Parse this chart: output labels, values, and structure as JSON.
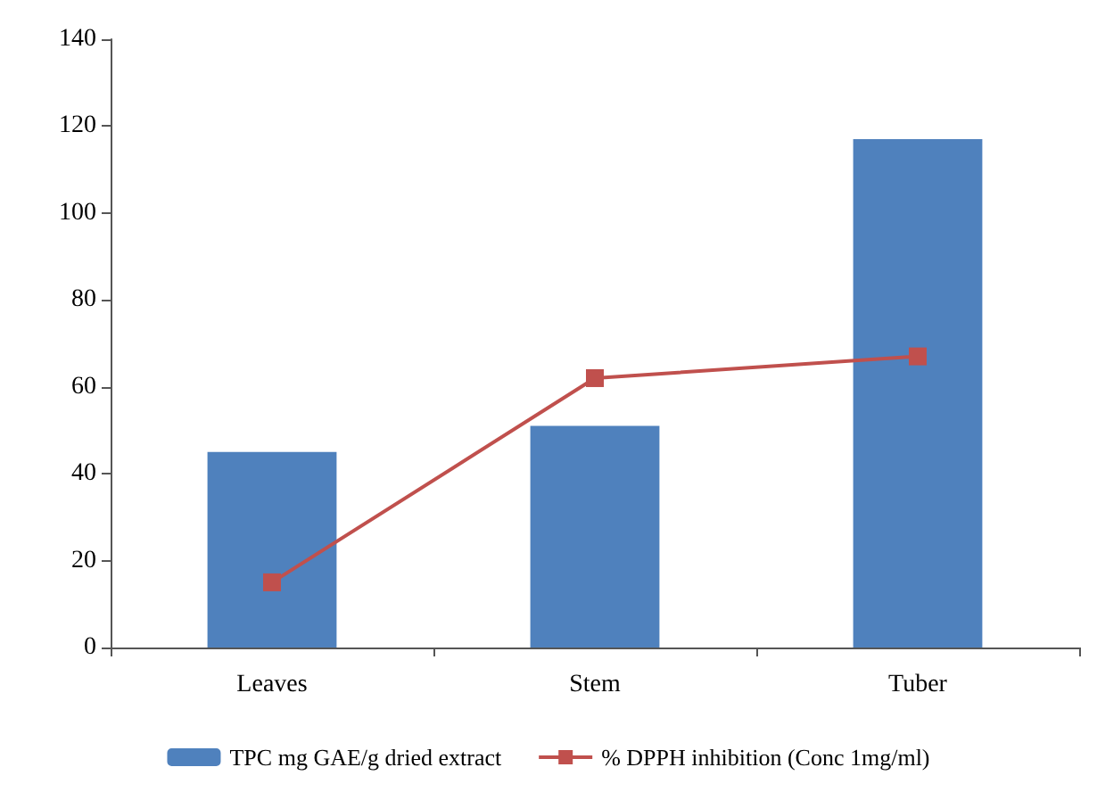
{
  "chart_data": {
    "type": "bar",
    "categories": [
      "Leaves",
      "Stem",
      "Tuber"
    ],
    "series": [
      {
        "name": "TPC mg GAE/g dried extract",
        "color": "#4f81bd",
        "values": [
          45,
          51,
          117
        ]
      },
      {
        "name": "% DPPH inhibition (Conc 1mg/ml)",
        "type": "line",
        "color": "#c0504d",
        "values": [
          15,
          62,
          67
        ],
        "marker": "square"
      }
    ],
    "ylim": [
      0,
      140
    ],
    "yticks": [
      0,
      20,
      40,
      60,
      80,
      100,
      120,
      140
    ],
    "grid": false,
    "legend": "bottom"
  }
}
